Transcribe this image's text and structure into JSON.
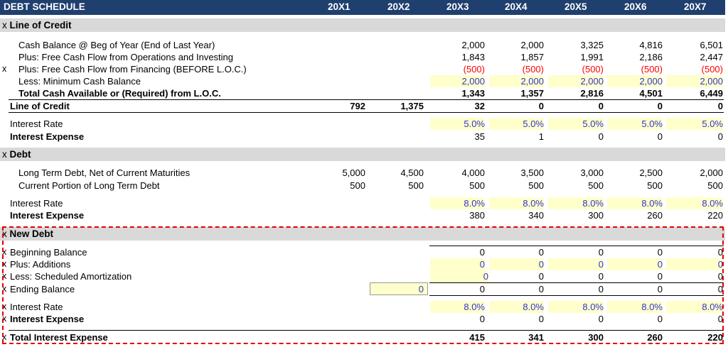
{
  "header": {
    "title": "DEBT SCHEDULE",
    "years": [
      "20X1",
      "20X2",
      "20X3",
      "20X4",
      "20X5",
      "20X6",
      "20X7"
    ]
  },
  "sections": {
    "loc": {
      "marker": "x",
      "title": "Line of Credit"
    },
    "debt": {
      "marker": "x",
      "title": "Debt"
    },
    "new_debt": {
      "marker": "x",
      "title": "New Debt"
    }
  },
  "rows": {
    "cash_beg": {
      "marker": "",
      "label": "Cash Balance @ Beg of Year (End of Last Year)",
      "values": [
        "",
        "",
        "2,000",
        "2,000",
        "3,325",
        "4,816",
        "6,501"
      ]
    },
    "fcf_ops": {
      "marker": "",
      "label": "Plus: Free Cash Flow from Operations and Investing",
      "values": [
        "",
        "",
        "1,843",
        "1,857",
        "1,991",
        "2,186",
        "2,447"
      ]
    },
    "fcf_fin": {
      "marker": "x",
      "label": "Plus: Free Cash Flow from Financing (BEFORE L.O.C.)",
      "values": [
        "",
        "",
        "(500)",
        "(500)",
        "(500)",
        "(500)",
        "(500)"
      ]
    },
    "min_cash": {
      "marker": "",
      "label": "Less: Minimum Cash Balance",
      "values": [
        "",
        "",
        "2,000",
        "2,000",
        "2,000",
        "2,000",
        "2,000"
      ]
    },
    "total_cash": {
      "marker": "",
      "label": "Total Cash Available or (Required) from L.O.C.",
      "values": [
        "",
        "",
        "1,343",
        "1,357",
        "2,816",
        "4,501",
        "6,449"
      ]
    },
    "loc": {
      "marker": "",
      "label": "Line of Credit",
      "values": [
        "792",
        "1,375",
        "32",
        "0",
        "0",
        "0",
        "0"
      ]
    },
    "loc_rate": {
      "marker": "",
      "label": "Interest Rate",
      "values": [
        "",
        "",
        "5.0%",
        "5.0%",
        "5.0%",
        "5.0%",
        "5.0%"
      ]
    },
    "loc_int": {
      "marker": "",
      "label": "Interest Expense",
      "values": [
        "",
        "",
        "35",
        "1",
        "0",
        "0",
        "0"
      ]
    },
    "ltd": {
      "marker": "",
      "label": "Long Term Debt, Net of Current Maturities",
      "values": [
        "5,000",
        "4,500",
        "4,000",
        "3,500",
        "3,000",
        "2,500",
        "2,000"
      ]
    },
    "cpltd": {
      "marker": "",
      "label": "Current Portion of Long Term Debt",
      "values": [
        "500",
        "500",
        "500",
        "500",
        "500",
        "500",
        "500"
      ]
    },
    "debt_rate": {
      "marker": "",
      "label": "Interest Rate",
      "values": [
        "",
        "",
        "8.0%",
        "8.0%",
        "8.0%",
        "8.0%",
        "8.0%"
      ]
    },
    "debt_int": {
      "marker": "",
      "label": "Interest Expense",
      "values": [
        "",
        "",
        "380",
        "340",
        "300",
        "260",
        "220"
      ]
    },
    "nd_beg": {
      "marker": "x",
      "label": "Beginning Balance",
      "values": [
        "",
        "",
        "0",
        "0",
        "0",
        "0",
        "0"
      ]
    },
    "nd_add": {
      "marker": "x",
      "label": "Plus: Additions",
      "values": [
        "",
        "",
        "0",
        "0",
        "0",
        "0",
        "0"
      ]
    },
    "nd_amort": {
      "marker": "x",
      "label": "Less: Scheduled Amortization",
      "values": [
        "",
        "",
        "0",
        "0",
        "0",
        "0",
        "0"
      ]
    },
    "nd_end": {
      "marker": "x",
      "label": "Ending Balance",
      "values": [
        "",
        "0",
        "0",
        "0",
        "0",
        "0",
        "0"
      ]
    },
    "nd_rate": {
      "marker": "x",
      "label": "Interest Rate",
      "values": [
        "",
        "",
        "8.0%",
        "8.0%",
        "8.0%",
        "8.0%",
        "8.0%"
      ]
    },
    "nd_int": {
      "marker": "x",
      "label": "Interest Expense",
      "values": [
        "",
        "",
        "0",
        "0",
        "0",
        "0",
        "0"
      ]
    },
    "total_int": {
      "marker": "x",
      "label": "Total Interest Expense",
      "values": [
        "",
        "",
        "415",
        "341",
        "300",
        "260",
        "220"
      ]
    }
  },
  "colors": {
    "header_bg": "#1f3f6e",
    "band_bg": "#d9d9d9",
    "input_bg": "#ffffcc",
    "input_text": "#3333cc",
    "negative": "#ff0000",
    "highlight_border": "#e00000"
  }
}
